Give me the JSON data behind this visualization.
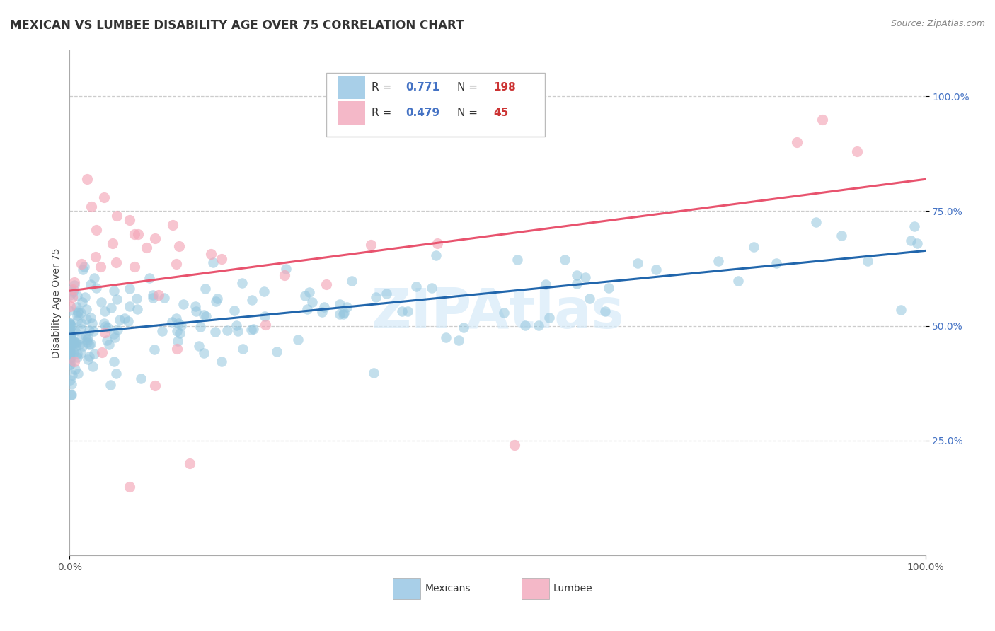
{
  "title": "MEXICAN VS LUMBEE DISABILITY AGE OVER 75 CORRELATION CHART",
  "source": "Source: ZipAtlas.com",
  "ylabel": "Disability Age Over 75",
  "mexican_R": 0.771,
  "mexican_N": 198,
  "lumbee_R": 0.479,
  "lumbee_N": 45,
  "blue_scatter_color": "#92c5de",
  "pink_scatter_color": "#f4a6b8",
  "blue_line_color": "#2166ac",
  "pink_line_color": "#e8536e",
  "blue_legend_color": "#a8cfe8",
  "pink_legend_color": "#f4b8c8",
  "watermark_color": "#d6eaf8",
  "title_color": "#333333",
  "source_color": "#888888",
  "tick_color_right": "#4472c4",
  "tick_color_bottom": "#555555",
  "grid_color": "#cccccc",
  "title_fontsize": 12,
  "tick_fontsize": 10,
  "ylabel_fontsize": 10
}
